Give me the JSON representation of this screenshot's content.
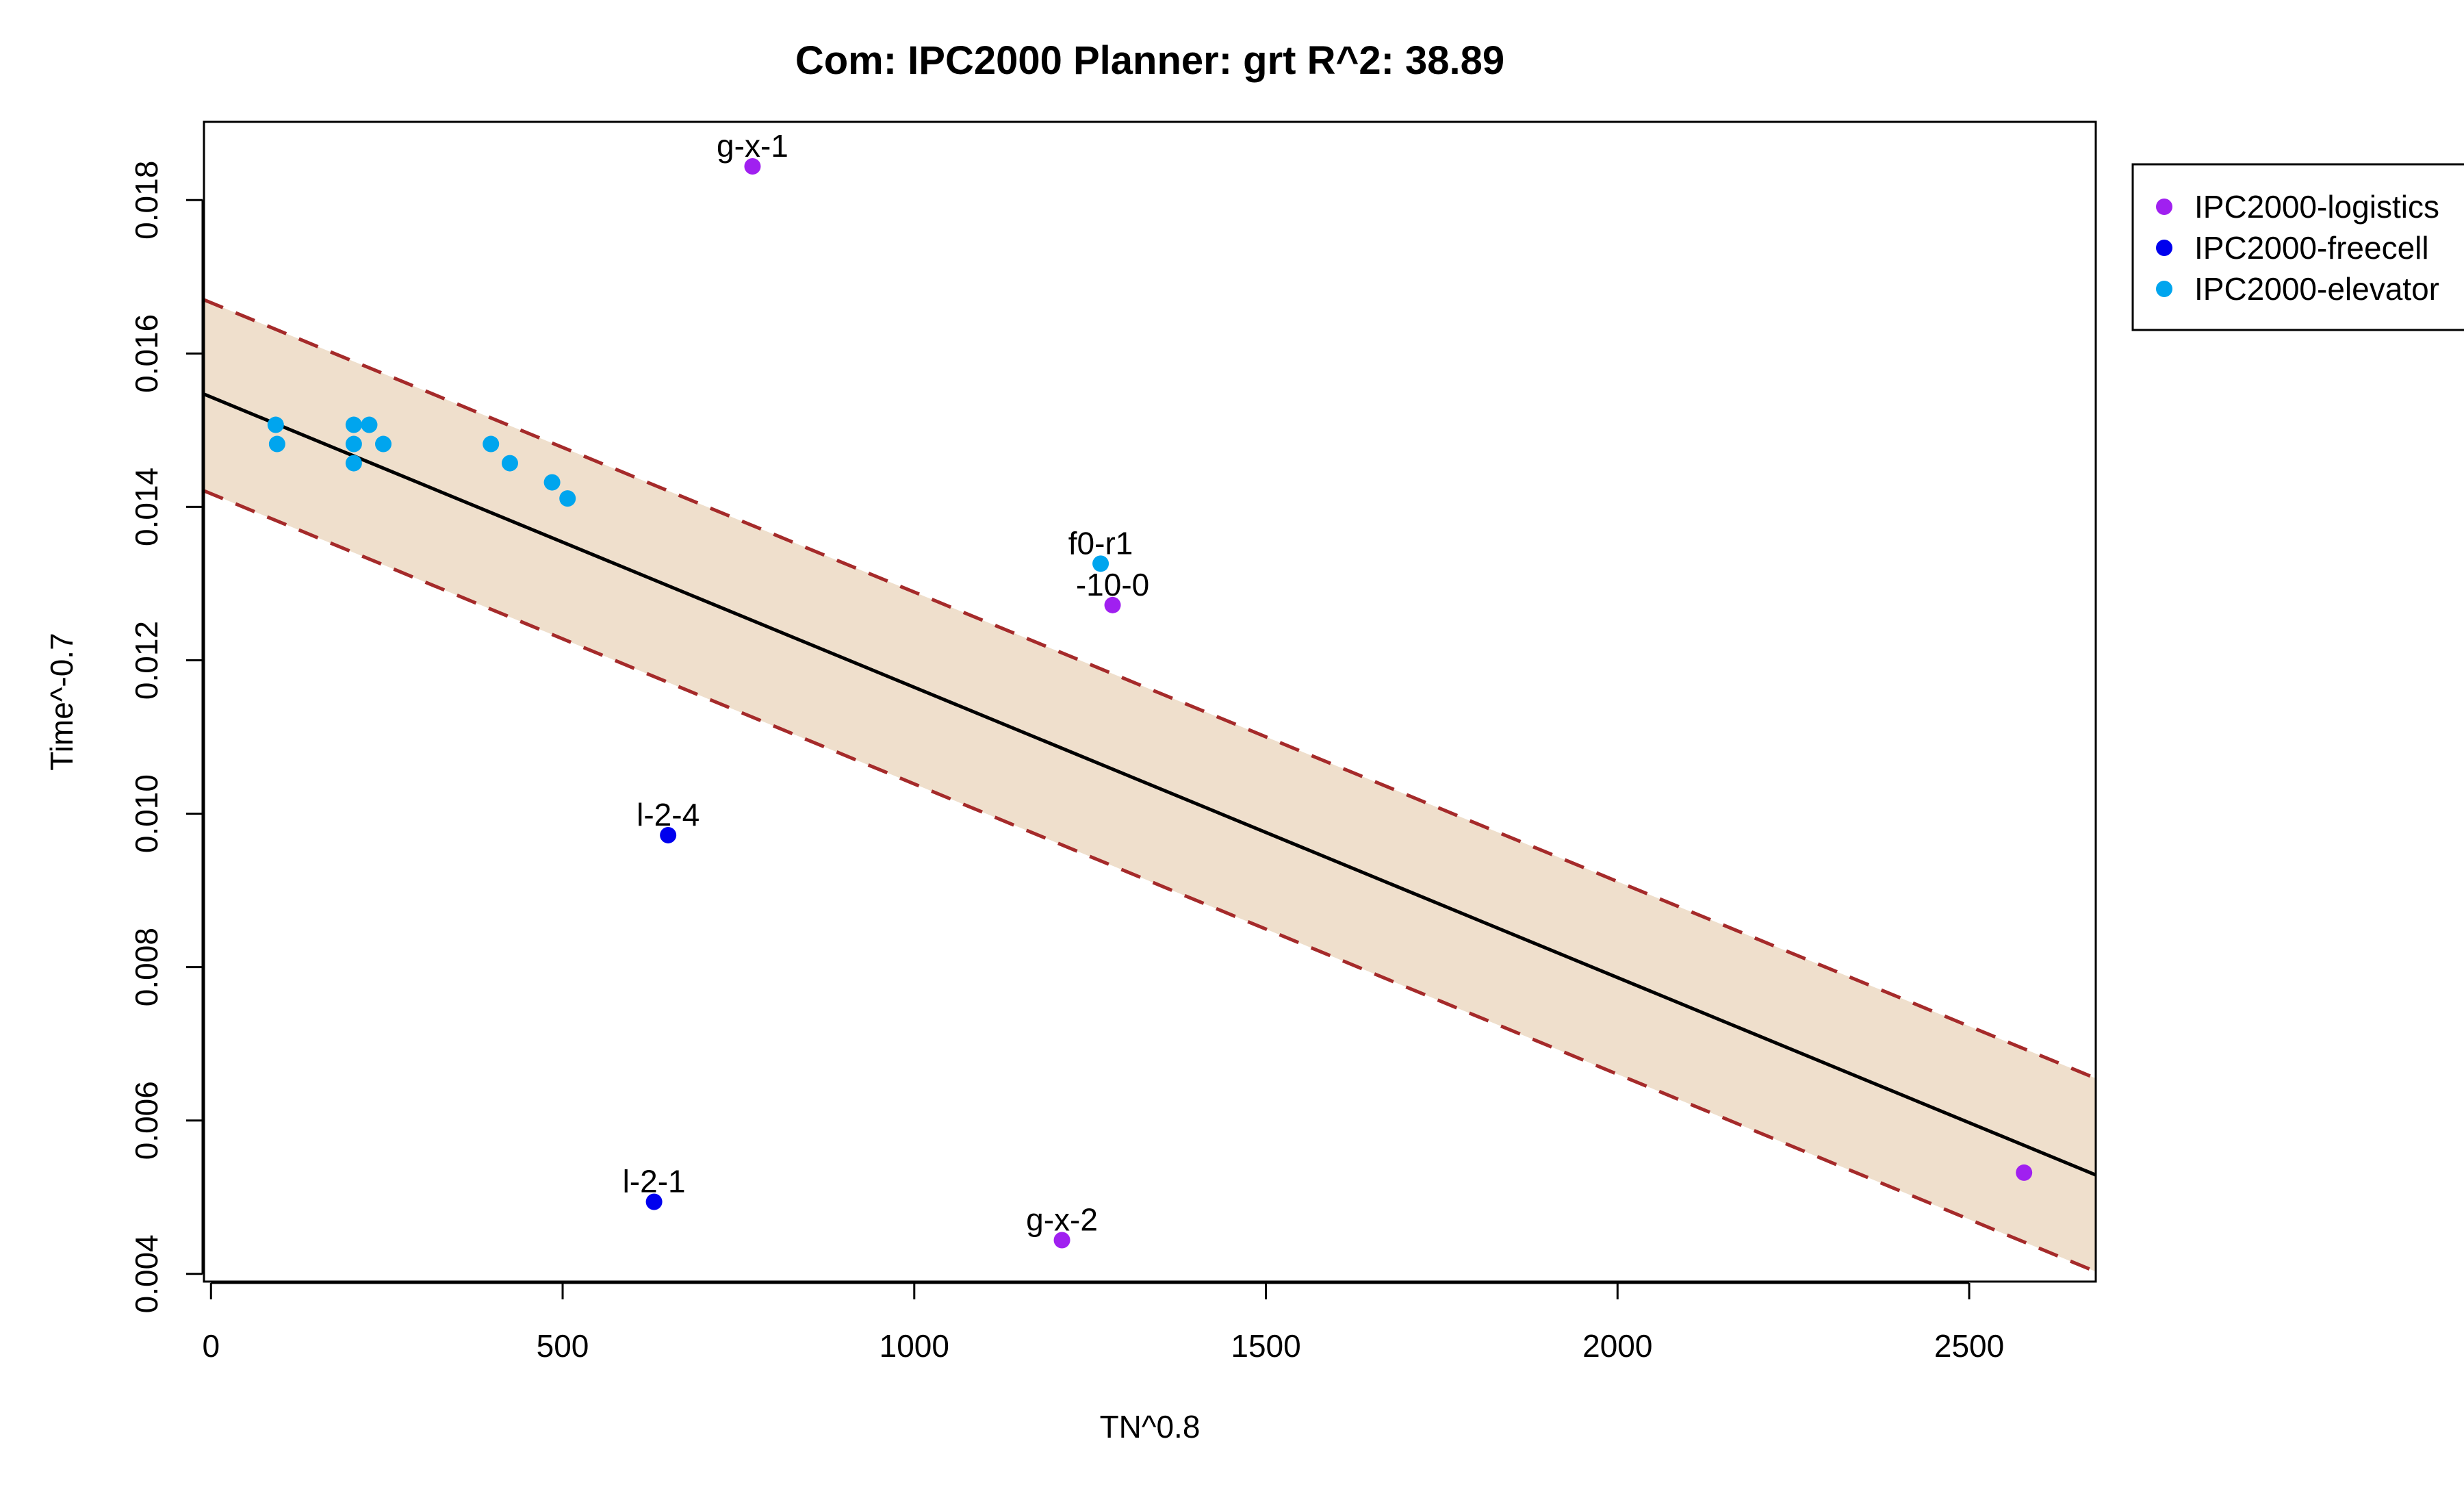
{
  "chart_data": {
    "type": "scatter",
    "title": "Com: IPC2000 Planner: grt R^2: 38.89",
    "xlabel": "TN^0.8",
    "ylabel": "Time^-0.7",
    "xlim": [
      -10,
      2680
    ],
    "ylim": [
      0.0039,
      0.01902
    ],
    "x_ticks": [
      0,
      500,
      1000,
      1500,
      2000,
      2500
    ],
    "x_tick_labels": [
      "0",
      "500",
      "1000",
      "1500",
      "2000",
      "2500"
    ],
    "y_ticks": [
      0.004,
      0.006,
      0.008,
      0.01,
      0.012,
      0.014,
      0.016,
      0.018
    ],
    "y_tick_labels": [
      "0.004",
      "0.006",
      "0.008",
      "0.010",
      "0.012",
      "0.014",
      "0.016",
      "0.018"
    ],
    "grid": false,
    "legend_position": "right",
    "colors": {
      "band_fill": "#efdfcc",
      "band_edge": "#a52a2a",
      "fit_line": "#000000"
    },
    "fit": {
      "line": [
        [
          -10,
          0.01547
        ],
        [
          2680,
          0.00529
        ]
      ],
      "upper": [
        [
          -10,
          0.0167
        ],
        [
          2680,
          0.00655
        ]
      ],
      "lower": [
        [
          -10,
          0.01421
        ],
        [
          2680,
          0.00403
        ]
      ]
    },
    "series": [
      {
        "name": "IPC2000-logistics",
        "color": "#a020f0",
        "points": [
          {
            "x": 770,
            "y": 0.01844,
            "label": "g-x-1"
          },
          {
            "x": 1282,
            "y": 0.01272,
            "label": "-10-0"
          },
          {
            "x": 1210,
            "y": 0.00444,
            "label": "g-x-2"
          },
          {
            "x": 2578,
            "y": 0.00532,
            "label": ""
          }
        ]
      },
      {
        "name": "IPC2000-freecell",
        "color": "#0000ee",
        "points": [
          {
            "x": 650,
            "y": 0.00972,
            "label": "l-2-4"
          },
          {
            "x": 630,
            "y": 0.00494,
            "label": "l-2-1"
          }
        ]
      },
      {
        "name": "IPC2000-elevator",
        "color": "#00a5ee",
        "points": [
          {
            "x": 92,
            "y": 0.01507,
            "label": ""
          },
          {
            "x": 94,
            "y": 0.01482,
            "label": ""
          },
          {
            "x": 203,
            "y": 0.01507,
            "label": ""
          },
          {
            "x": 203,
            "y": 0.01482,
            "label": ""
          },
          {
            "x": 203,
            "y": 0.01457,
            "label": ""
          },
          {
            "x": 225,
            "y": 0.01507,
            "label": ""
          },
          {
            "x": 245,
            "y": 0.01482,
            "label": ""
          },
          {
            "x": 398,
            "y": 0.01482,
            "label": ""
          },
          {
            "x": 425,
            "y": 0.01457,
            "label": ""
          },
          {
            "x": 485,
            "y": 0.01432,
            "label": ""
          },
          {
            "x": 507,
            "y": 0.01411,
            "label": ""
          },
          {
            "x": 1265,
            "y": 0.01326,
            "label": "f0-r1"
          }
        ]
      }
    ]
  }
}
